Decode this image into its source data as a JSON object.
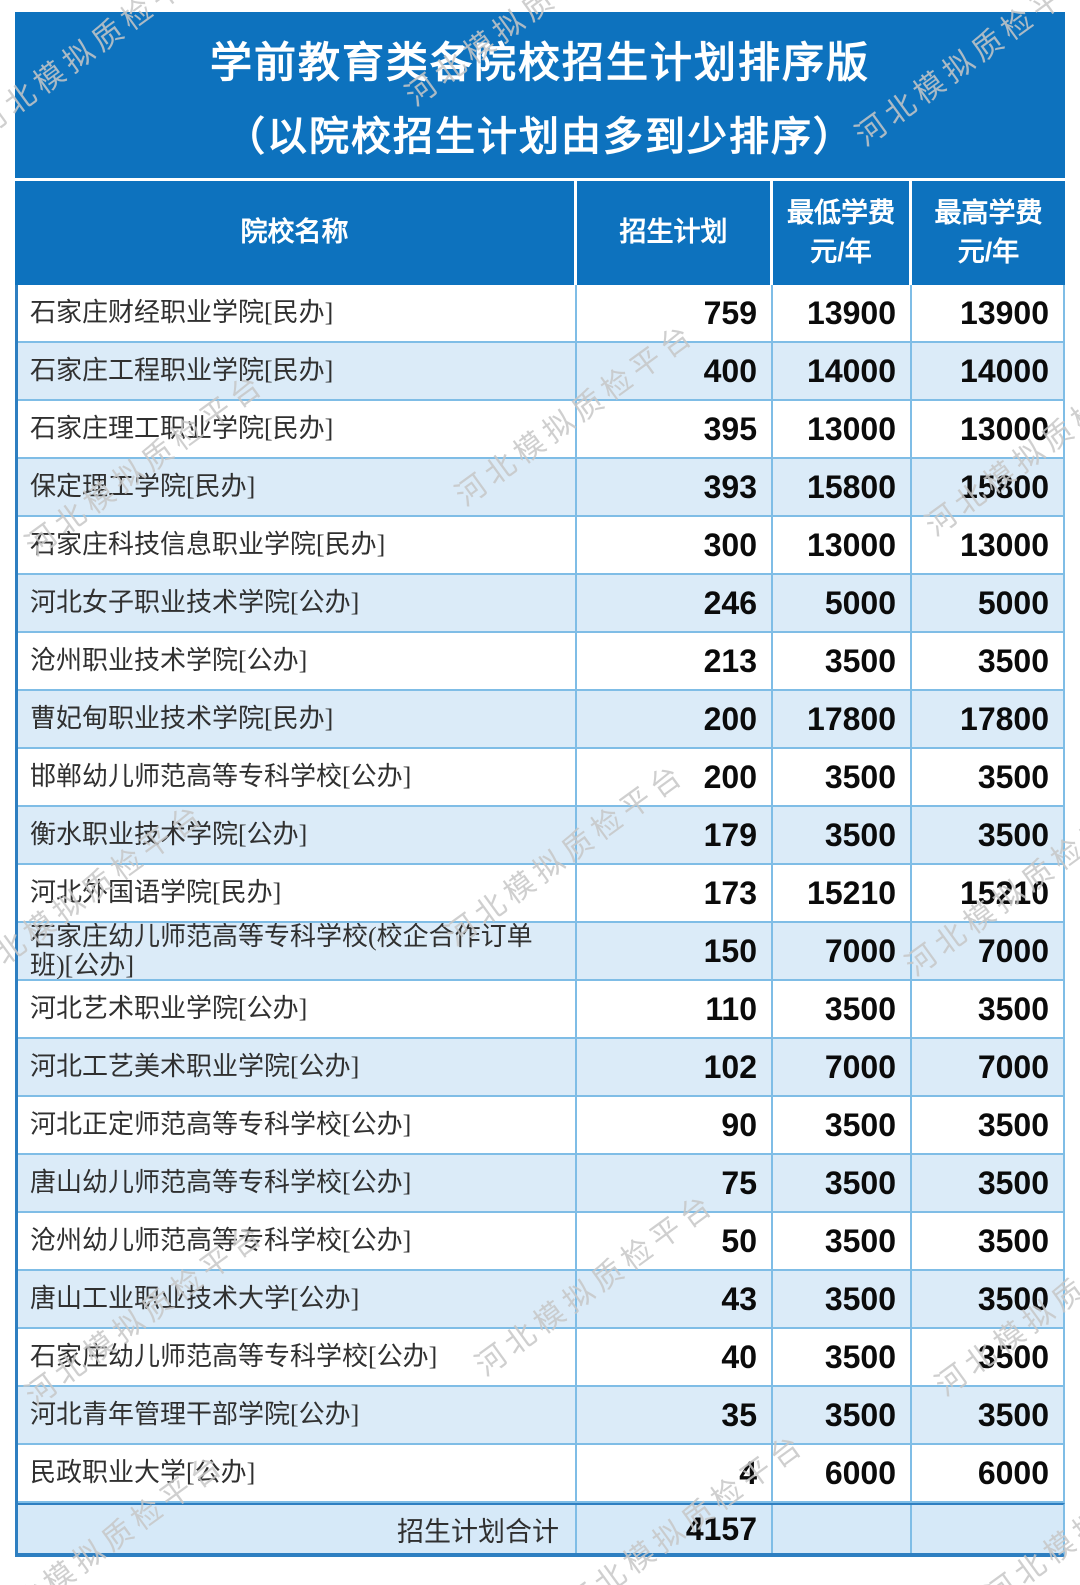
{
  "watermark": {
    "text": "河北模拟质检平台"
  },
  "title": {
    "line1": "学前教育类各院校招生计划排序版",
    "line2": "（以院校招生计划由多到少排序）"
  },
  "table": {
    "headers": {
      "name": "院校名称",
      "plan": "招生计划",
      "min_fee_line1": "最低学费",
      "min_fee_line2": "元/年",
      "max_fee_line1": "最高学费",
      "max_fee_line2": "元/年"
    },
    "rows": [
      {
        "name": "石家庄财经职业学院[民办]",
        "plan": "759",
        "min": "13900",
        "max": "13900"
      },
      {
        "name": "石家庄工程职业学院[民办]",
        "plan": "400",
        "min": "14000",
        "max": "14000"
      },
      {
        "name": "石家庄理工职业学院[民办]",
        "plan": "395",
        "min": "13000",
        "max": "13000"
      },
      {
        "name": "保定理工学院[民办]",
        "plan": "393",
        "min": "15800",
        "max": "15800"
      },
      {
        "name": "石家庄科技信息职业学院[民办]",
        "plan": "300",
        "min": "13000",
        "max": "13000"
      },
      {
        "name": "河北女子职业技术学院[公办]",
        "plan": "246",
        "min": "5000",
        "max": "5000"
      },
      {
        "name": "沧州职业技术学院[公办]",
        "plan": "213",
        "min": "3500",
        "max": "3500"
      },
      {
        "name": "曹妃甸职业技术学院[民办]",
        "plan": "200",
        "min": "17800",
        "max": "17800"
      },
      {
        "name": "邯郸幼儿师范高等专科学校[公办]",
        "plan": "200",
        "min": "3500",
        "max": "3500"
      },
      {
        "name": "衡水职业技术学院[公办]",
        "plan": "179",
        "min": "3500",
        "max": "3500"
      },
      {
        "name": "河北外国语学院[民办]",
        "plan": "173",
        "min": "15210",
        "max": "15210"
      },
      {
        "name": "石家庄幼儿师范高等专科学校(校企合作订单班)[公办]",
        "plan": "150",
        "min": "7000",
        "max": "7000"
      },
      {
        "name": "河北艺术职业学院[公办]",
        "plan": "110",
        "min": "3500",
        "max": "3500"
      },
      {
        "name": "河北工艺美术职业学院[公办]",
        "plan": "102",
        "min": "7000",
        "max": "7000"
      },
      {
        "name": "河北正定师范高等专科学校[公办]",
        "plan": "90",
        "min": "3500",
        "max": "3500"
      },
      {
        "name": "唐山幼儿师范高等专科学校[公办]",
        "plan": "75",
        "min": "3500",
        "max": "3500"
      },
      {
        "name": "沧州幼儿师范高等专科学校[公办]",
        "plan": "50",
        "min": "3500",
        "max": "3500"
      },
      {
        "name": "唐山工业职业技术大学[公办]",
        "plan": "43",
        "min": "3500",
        "max": "3500"
      },
      {
        "name": "石家庄幼儿师范高等专科学校[公办]",
        "plan": "40",
        "min": "3500",
        "max": "3500"
      },
      {
        "name": "河北青年管理干部学院[公办]",
        "plan": "35",
        "min": "3500",
        "max": "3500"
      },
      {
        "name": "民政职业大学[公办]",
        "plan": "4",
        "min": "6000",
        "max": "6000"
      }
    ],
    "total": {
      "label": "招生计划合计",
      "plan": "4157"
    }
  },
  "colors": {
    "header_blue": "#0d72be",
    "row_alt": "#dbebf8",
    "total_bg": "#d6e9f8",
    "border_light": "#7fbde6",
    "border_strong": "#2e7fc1",
    "name_text": "#303030",
    "num_text": "#0b0b0b",
    "watermark": "#c7c7c7"
  }
}
